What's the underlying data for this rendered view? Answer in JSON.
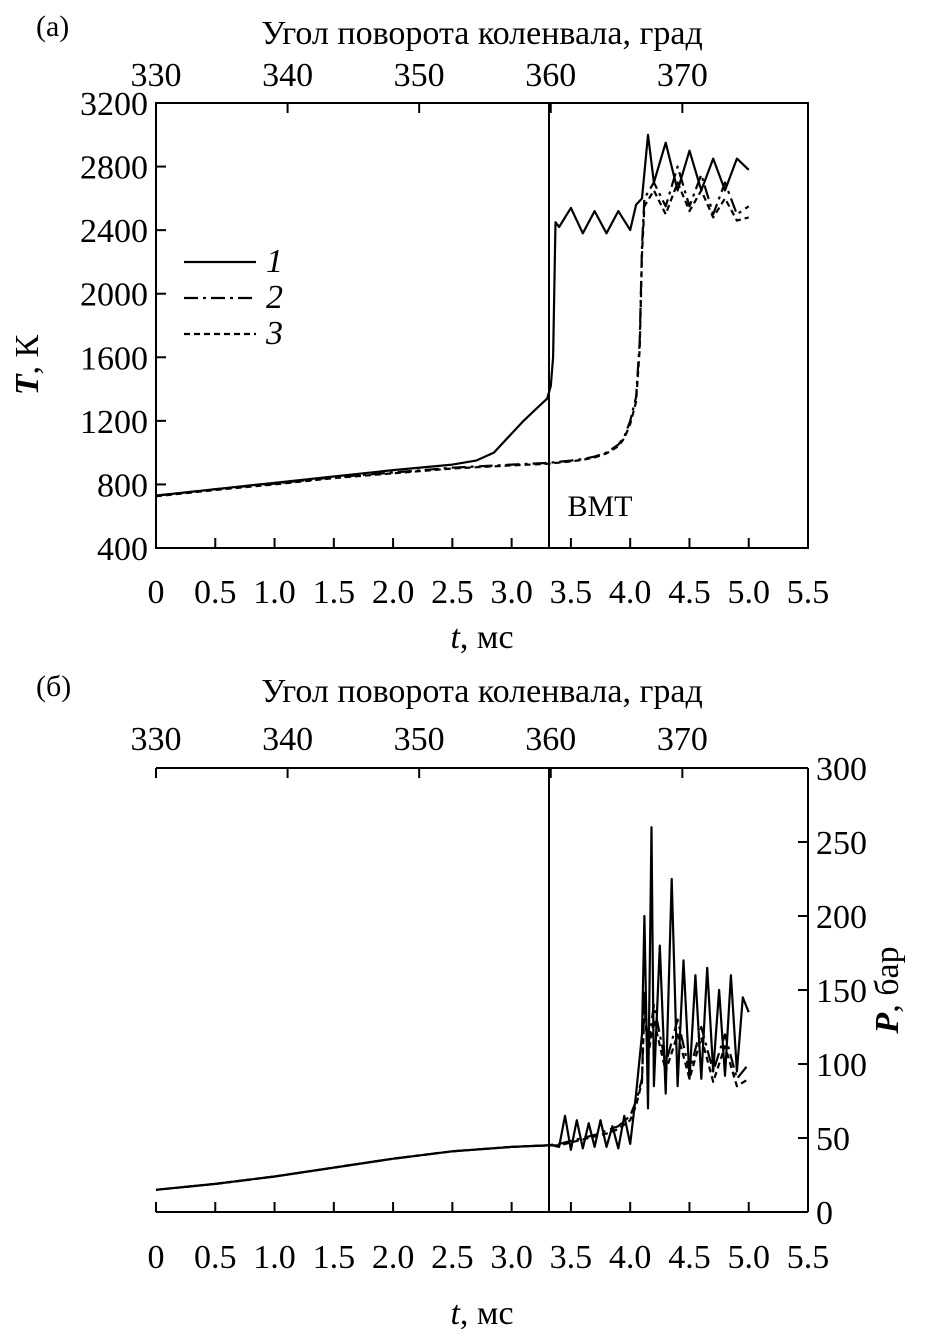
{
  "chart_data": [
    {
      "type": "line",
      "panel_label": "(а)",
      "top_axis_title": "Угол поворота коленвала, град",
      "top_ticks": [
        "330",
        "340",
        "350",
        "360",
        "370"
      ],
      "xlabel_var": "t",
      "xlabel_unit": ", мс",
      "ylabel_var": "T",
      "ylabel_unit": ", К",
      "xlim": [
        0,
        5.5
      ],
      "ylim": [
        400,
        3200
      ],
      "x_ticks": [
        "0",
        "0.5",
        "1.0",
        "1.5",
        "2.0",
        "2.5",
        "3.0",
        "3.5",
        "4.0",
        "4.5",
        "5.0",
        "5.5"
      ],
      "y_ticks": [
        "400",
        "800",
        "1200",
        "1600",
        "2000",
        "2400",
        "2800",
        "3200"
      ],
      "tdc_label": "ВМТ",
      "legend": [
        "1",
        "2",
        "3"
      ],
      "legend_position": "upper-left",
      "series": [
        {
          "name": "1",
          "style": "solid",
          "x": [
            0,
            0.5,
            1.0,
            1.5,
            2.0,
            2.5,
            2.7,
            2.85,
            3.0,
            3.1,
            3.2,
            3.3,
            3.33,
            3.35,
            3.37,
            3.4,
            3.5,
            3.6,
            3.7,
            3.8,
            3.9,
            4.0,
            4.05,
            4.1,
            4.15,
            4.2,
            4.3,
            4.4,
            4.5,
            4.6,
            4.7,
            4.8,
            4.9,
            5.0
          ],
          "y": [
            730,
            770,
            810,
            850,
            890,
            925,
            950,
            1000,
            1120,
            1200,
            1270,
            1340,
            1420,
            1600,
            2450,
            2420,
            2540,
            2380,
            2520,
            2380,
            2520,
            2400,
            2560,
            2600,
            3000,
            2700,
            2950,
            2650,
            2900,
            2650,
            2850,
            2650,
            2850,
            2780
          ]
        },
        {
          "name": "2",
          "style": "dash-dot",
          "x": [
            0,
            0.5,
            1.0,
            1.5,
            2.0,
            2.5,
            3.0,
            3.3,
            3.5,
            3.6,
            3.7,
            3.8,
            3.9,
            3.95,
            4.0,
            4.05,
            4.08,
            4.1,
            4.12,
            4.2,
            4.3,
            4.4,
            4.5,
            4.6,
            4.7,
            4.8,
            4.9,
            5.0
          ],
          "y": [
            730,
            770,
            805,
            845,
            875,
            905,
            925,
            935,
            950,
            960,
            975,
            1000,
            1050,
            1100,
            1200,
            1350,
            1700,
            2300,
            2600,
            2700,
            2550,
            2800,
            2550,
            2750,
            2500,
            2700,
            2500,
            2550
          ]
        },
        {
          "name": "3",
          "style": "dashed",
          "x": [
            0,
            0.5,
            1.0,
            1.5,
            2.0,
            2.5,
            3.0,
            3.3,
            3.5,
            3.6,
            3.7,
            3.8,
            3.9,
            3.95,
            4.0,
            4.05,
            4.08,
            4.1,
            4.12,
            4.2,
            4.3,
            4.4,
            4.5,
            4.6,
            4.7,
            4.8,
            4.9,
            5.0
          ],
          "y": [
            725,
            765,
            800,
            840,
            870,
            900,
            920,
            930,
            945,
            955,
            970,
            995,
            1040,
            1090,
            1180,
            1320,
            1650,
            2250,
            2550,
            2650,
            2500,
            2700,
            2520,
            2650,
            2480,
            2600,
            2460,
            2480
          ]
        }
      ]
    },
    {
      "type": "line",
      "panel_label": "(б)",
      "top_axis_title": "Угол поворота коленвала, град",
      "top_ticks": [
        "330",
        "340",
        "350",
        "360",
        "370"
      ],
      "xlabel_var": "t",
      "xlabel_unit": ", мс",
      "ylabel_var": "P",
      "ylabel_unit": ", бар",
      "xlim": [
        0,
        5.5
      ],
      "ylim": [
        0,
        300
      ],
      "x_ticks": [
        "0",
        "0.5",
        "1.0",
        "1.5",
        "2.0",
        "2.5",
        "3.0",
        "3.5",
        "4.0",
        "4.5",
        "5.0",
        "5.5"
      ],
      "y_ticks": [
        "0",
        "50",
        "100",
        "150",
        "200",
        "250",
        "300"
      ],
      "series": [
        {
          "name": "1",
          "style": "solid",
          "x": [
            0,
            0.5,
            1.0,
            1.5,
            2.0,
            2.5,
            3.0,
            3.3,
            3.35,
            3.4,
            3.45,
            3.5,
            3.55,
            3.6,
            3.65,
            3.7,
            3.75,
            3.8,
            3.85,
            3.9,
            3.95,
            4.0,
            4.05,
            4.1,
            4.12,
            4.15,
            4.18,
            4.2,
            4.25,
            4.3,
            4.35,
            4.4,
            4.45,
            4.5,
            4.55,
            4.6,
            4.65,
            4.7,
            4.75,
            4.8,
            4.85,
            4.9,
            4.95,
            5.0
          ],
          "y": [
            15,
            19,
            24,
            30,
            36,
            41,
            44,
            45,
            45,
            44,
            65,
            42,
            62,
            43,
            60,
            44,
            62,
            44,
            58,
            43,
            65,
            46,
            80,
            120,
            200,
            70,
            260,
            85,
            180,
            80,
            225,
            85,
            170,
            90,
            160,
            90,
            165,
            95,
            150,
            92,
            160,
            95,
            145,
            135
          ]
        },
        {
          "name": "2",
          "style": "dash-dot",
          "x": [
            0,
            0.5,
            1.0,
            1.5,
            2.0,
            2.5,
            3.0,
            3.3,
            3.4,
            3.5,
            3.6,
            3.7,
            3.8,
            3.9,
            4.0,
            4.05,
            4.1,
            4.12,
            4.15,
            4.2,
            4.3,
            4.4,
            4.5,
            4.6,
            4.7,
            4.8,
            4.9,
            5.0
          ],
          "y": [
            15,
            19,
            24,
            30,
            36,
            41,
            44,
            45,
            46,
            48,
            50,
            52,
            55,
            58,
            65,
            75,
            90,
            150,
            110,
            140,
            100,
            130,
            95,
            125,
            95,
            120,
            90,
            100
          ]
        },
        {
          "name": "3",
          "style": "dashed",
          "x": [
            0,
            0.5,
            1.0,
            1.5,
            2.0,
            2.5,
            3.0,
            3.3,
            3.4,
            3.5,
            3.6,
            3.7,
            3.8,
            3.9,
            4.0,
            4.05,
            4.1,
            4.12,
            4.15,
            4.2,
            4.3,
            4.4,
            4.5,
            4.6,
            4.7,
            4.8,
            4.9,
            5.0
          ],
          "y": [
            15,
            19,
            24,
            30,
            36,
            41,
            44,
            45,
            45,
            47,
            49,
            51,
            53,
            56,
            62,
            72,
            88,
            140,
            105,
            130,
            95,
            120,
            90,
            118,
            88,
            112,
            85,
            90
          ]
        }
      ]
    }
  ]
}
